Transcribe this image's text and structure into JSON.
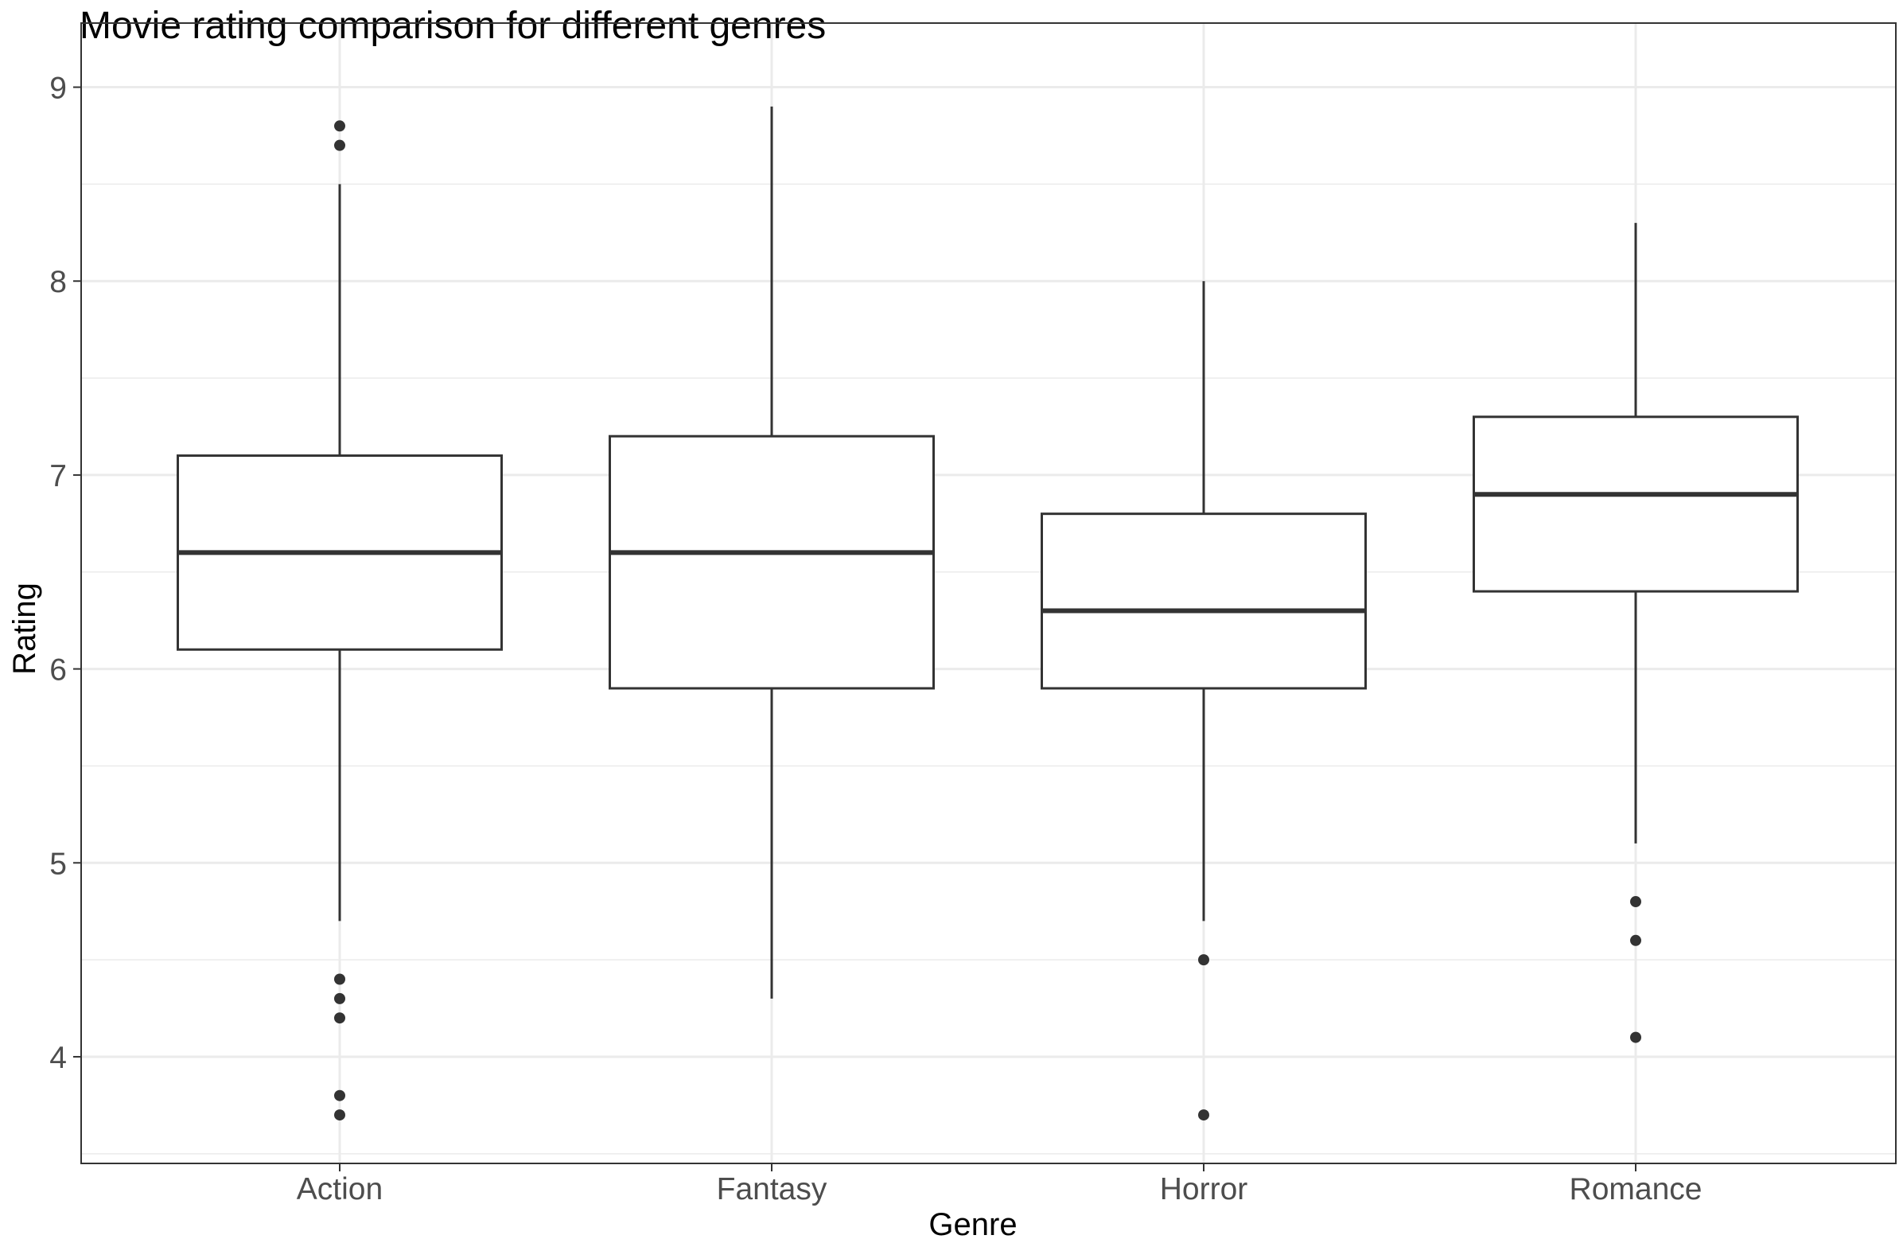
{
  "chart_data": {
    "type": "boxplot",
    "title": "Movie rating comparison for different genres",
    "xlabel": "Genre",
    "ylabel": "Rating",
    "ylim": [
      3.45,
      9.15
    ],
    "yticks": [
      "4",
      "5",
      "6",
      "7",
      "8",
      "9"
    ],
    "ytick_values": [
      4,
      5,
      6,
      7,
      8,
      9
    ],
    "grid": true,
    "categories": [
      "Action",
      "Fantasy",
      "Horror",
      "Romance"
    ],
    "boxes": [
      {
        "category": "Action",
        "whisker_low": 4.7,
        "q1": 6.1,
        "median": 6.6,
        "q3": 7.1,
        "whisker_high": 8.5,
        "outliers": [
          8.8,
          8.7,
          4.4,
          4.3,
          4.2,
          3.8,
          3.7
        ]
      },
      {
        "category": "Fantasy",
        "whisker_low": 4.3,
        "q1": 5.9,
        "median": 6.6,
        "q3": 7.2,
        "whisker_high": 8.9,
        "outliers": []
      },
      {
        "category": "Horror",
        "whisker_low": 4.7,
        "q1": 5.9,
        "median": 6.3,
        "q3": 6.8,
        "whisker_high": 8.0,
        "outliers": [
          4.5,
          3.7
        ]
      },
      {
        "category": "Romance",
        "whisker_low": 5.1,
        "q1": 6.4,
        "median": 6.9,
        "q3": 7.3,
        "whisker_high": 8.3,
        "outliers": [
          4.8,
          4.6,
          4.1
        ]
      }
    ],
    "colors": {
      "background": "#ffffff",
      "panel_border": "#333333",
      "grid": "#ebebeb",
      "box_line": "#333333",
      "outlier": "#333333",
      "tick_label": "#4d4d4d"
    }
  }
}
